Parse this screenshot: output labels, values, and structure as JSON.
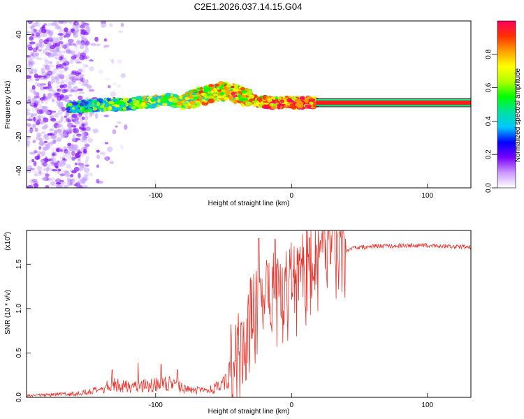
{
  "title": "C2E1.2026.037.14.15.G04",
  "top_chart": {
    "type": "heatmap",
    "xlabel": "Height of straight line (km)",
    "ylabel": "Frequency (Hz)",
    "xlim": [
      -195,
      132
    ],
    "ylim": [
      -50,
      48
    ],
    "xticks": [
      -100,
      0,
      100
    ],
    "yticks": [
      -40,
      -20,
      0,
      20,
      40
    ],
    "colorbar": {
      "label": "Normalized spectral amplitude",
      "range": [
        0,
        1
      ],
      "ticks": [
        "0.0",
        "0.2",
        "0.4",
        "0.6",
        "0.8"
      ],
      "tick_values": [
        0,
        0.2,
        0.4,
        0.6,
        0.8
      ],
      "colors": [
        "#ffffff",
        "#cc99ff",
        "#7a00ff",
        "#0000ff",
        "#00c8ff",
        "#00e0a0",
        "#00ff00",
        "#b0ff00",
        "#ffff00",
        "#ffa000",
        "#ff3000",
        "#ff0060"
      ]
    },
    "ridge_track": {
      "x": [
        -165,
        -150,
        -135,
        -120,
        -110,
        -100,
        -90,
        -80,
        -70,
        -60,
        -50,
        -45,
        -40,
        -35,
        -25,
        -15,
        -5,
        0,
        10,
        20,
        132
      ],
      "y": [
        -3,
        -2,
        -1,
        -1,
        0,
        1,
        2,
        0,
        3,
        5,
        7,
        6,
        5,
        3,
        1,
        0,
        0,
        0,
        0,
        0,
        0
      ],
      "strong_segment_x": [
        18,
        132
      ]
    },
    "noise_region_x": [
      -195,
      -150
    ]
  },
  "bottom_chart": {
    "type": "line",
    "xlabel": "Height of straight line (km)",
    "ylabel": "SNR (10 * v/v)",
    "y_multiplier": "(x10",
    "y_multiplier_exp": "4",
    "y_multiplier_close": ")",
    "xlim": [
      -195,
      132
    ],
    "ylim": [
      0,
      1.88
    ],
    "xticks": [
      -100,
      0,
      100
    ],
    "yticks": [
      "0.0",
      "0.5",
      "1.0",
      "1.5"
    ],
    "ytick_values": [
      0,
      0.5,
      1.0,
      1.5
    ],
    "color": "#e8342c",
    "envelope": {
      "x": [
        -195,
        -160,
        -140,
        -132,
        -120,
        -105,
        -90,
        -75,
        -62,
        -50,
        -40,
        -32,
        -24,
        -16,
        -8,
        0,
        8,
        16,
        24,
        32,
        45,
        60,
        80,
        100,
        120,
        132
      ],
      "y": [
        0.02,
        0.04,
        0.08,
        0.15,
        0.12,
        0.14,
        0.15,
        0.08,
        0.07,
        0.15,
        0.4,
        0.75,
        1.0,
        1.1,
        1.1,
        1.15,
        1.3,
        1.45,
        1.55,
        1.62,
        1.68,
        1.7,
        1.71,
        1.71,
        1.7,
        1.69
      ]
    },
    "spikes": [
      {
        "x": -132,
        "y": 0.31
      },
      {
        "x": -113,
        "y": 0.39
      },
      {
        "x": -96,
        "y": 0.37
      },
      {
        "x": -84,
        "y": 0.31
      },
      {
        "x": -30,
        "y": 1.35
      },
      {
        "x": -24,
        "y": 1.79
      },
      {
        "x": -12,
        "y": 1.78
      },
      {
        "x": 8,
        "y": 1.84
      },
      {
        "x": 12,
        "y": 1.58
      },
      {
        "x": 22,
        "y": 1.72
      }
    ]
  }
}
